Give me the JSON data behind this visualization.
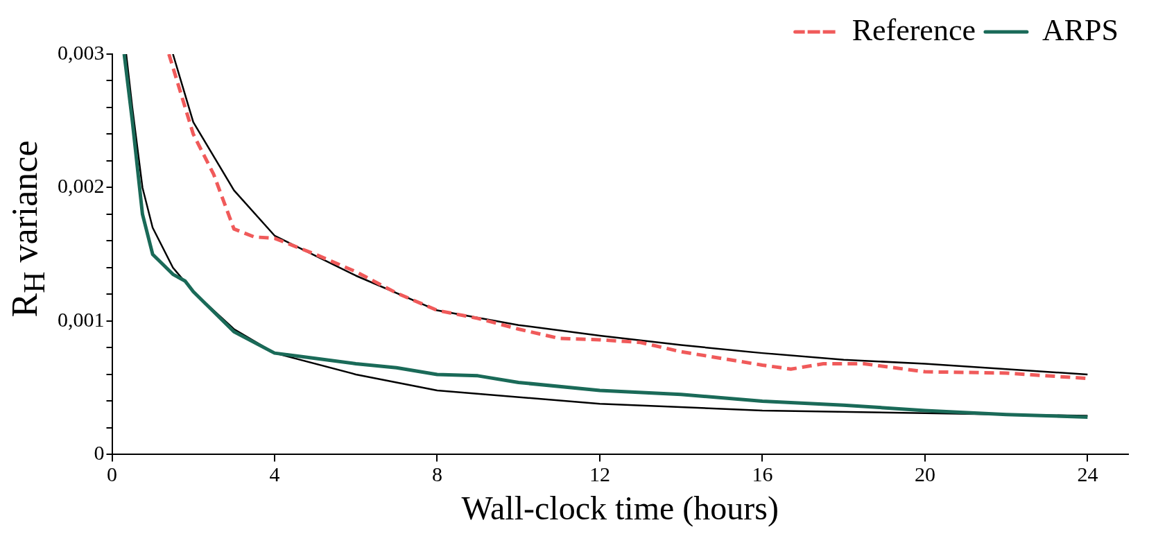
{
  "chart_data": {
    "type": "line",
    "xlabel": "Wall-clock time (hours)",
    "ylabel": "R$_{H}$ variance",
    "xlim": [
      0,
      25
    ],
    "xticks": [
      0,
      4,
      8,
      12,
      16,
      20,
      24
    ],
    "ylim": [
      0,
      0.003
    ],
    "yticks": [
      {
        "value": 0,
        "label": "0"
      },
      {
        "value": 0.0002,
        "label": null
      },
      {
        "value": 0.0004,
        "label": null
      },
      {
        "value": 0.0006,
        "label": null
      },
      {
        "value": 0.0008,
        "label": null
      },
      {
        "value": 0.001,
        "label": "0,001"
      },
      {
        "value": 0.0012,
        "label": null
      },
      {
        "value": 0.0014,
        "label": null
      },
      {
        "value": 0.0016,
        "label": null
      },
      {
        "value": 0.0018,
        "label": null
      },
      {
        "value": 0.002,
        "label": "0,002"
      },
      {
        "value": 0.0022,
        "label": null
      },
      {
        "value": 0.0024,
        "label": null
      },
      {
        "value": 0.0026,
        "label": null
      },
      {
        "value": 0.0028,
        "label": null
      },
      {
        "value": 0.003,
        "label": "0,003"
      }
    ],
    "grid": false,
    "legend": "top right",
    "marker": "none",
    "series": [
      {
        "name": "Reference",
        "color": "#f05a5a",
        "line_style": "dashed",
        "x": [
          1.4,
          2,
          2.5,
          3,
          3.5,
          4,
          5,
          6,
          7,
          8,
          9,
          10,
          11,
          12,
          13,
          14,
          15,
          16,
          16.7,
          17.5,
          18.5,
          20,
          22,
          24
        ],
        "values": [
          0.003,
          0.0024,
          0.0021,
          0.00169,
          0.00163,
          0.00162,
          0.0015,
          0.00137,
          0.00121,
          0.00108,
          0.00102,
          0.00094,
          0.00087,
          0.00086,
          0.00084,
          0.00077,
          0.00072,
          0.00067,
          0.00064,
          0.00068,
          0.00068,
          0.00062,
          0.00061,
          0.00057
        ]
      },
      {
        "name": "ARPS",
        "color": "#1a6a58",
        "line_style": "solid",
        "x": [
          0.3,
          0.5,
          0.75,
          1,
          1.5,
          1.8,
          2,
          3,
          4,
          5,
          6,
          7,
          8,
          9,
          10,
          12,
          14,
          16,
          18,
          20,
          22,
          24
        ],
        "values": [
          0.003,
          0.0025,
          0.0018,
          0.0015,
          0.00135,
          0.0013,
          0.00122,
          0.00092,
          0.00076,
          0.00072,
          0.00068,
          0.00065,
          0.0006,
          0.00059,
          0.00054,
          0.00048,
          0.00045,
          0.0004,
          0.00037,
          0.00033,
          0.0003,
          0.00028
        ]
      },
      {
        "color": "#000000",
        "line_style": "solid",
        "x": [
          1.5,
          2,
          3,
          4,
          6,
          8,
          10,
          12,
          14,
          16,
          18,
          20,
          22,
          24
        ],
        "values": [
          0.003,
          0.00249,
          0.00198,
          0.00164,
          0.00134,
          0.00108,
          0.00097,
          0.00089,
          0.00082,
          0.00076,
          0.00071,
          0.00068,
          0.00064,
          0.0006
        ]
      },
      {
        "color": "#000000",
        "line_style": "solid",
        "x": [
          0.35,
          0.5,
          0.75,
          1,
          1.5,
          2,
          3,
          4,
          6,
          8,
          12,
          16,
          20,
          24
        ],
        "values": [
          0.003,
          0.0026,
          0.002,
          0.0017,
          0.0014,
          0.00122,
          0.00094,
          0.00076,
          0.0006,
          0.00048,
          0.00038,
          0.00033,
          0.00031,
          0.00029
        ]
      }
    ]
  }
}
